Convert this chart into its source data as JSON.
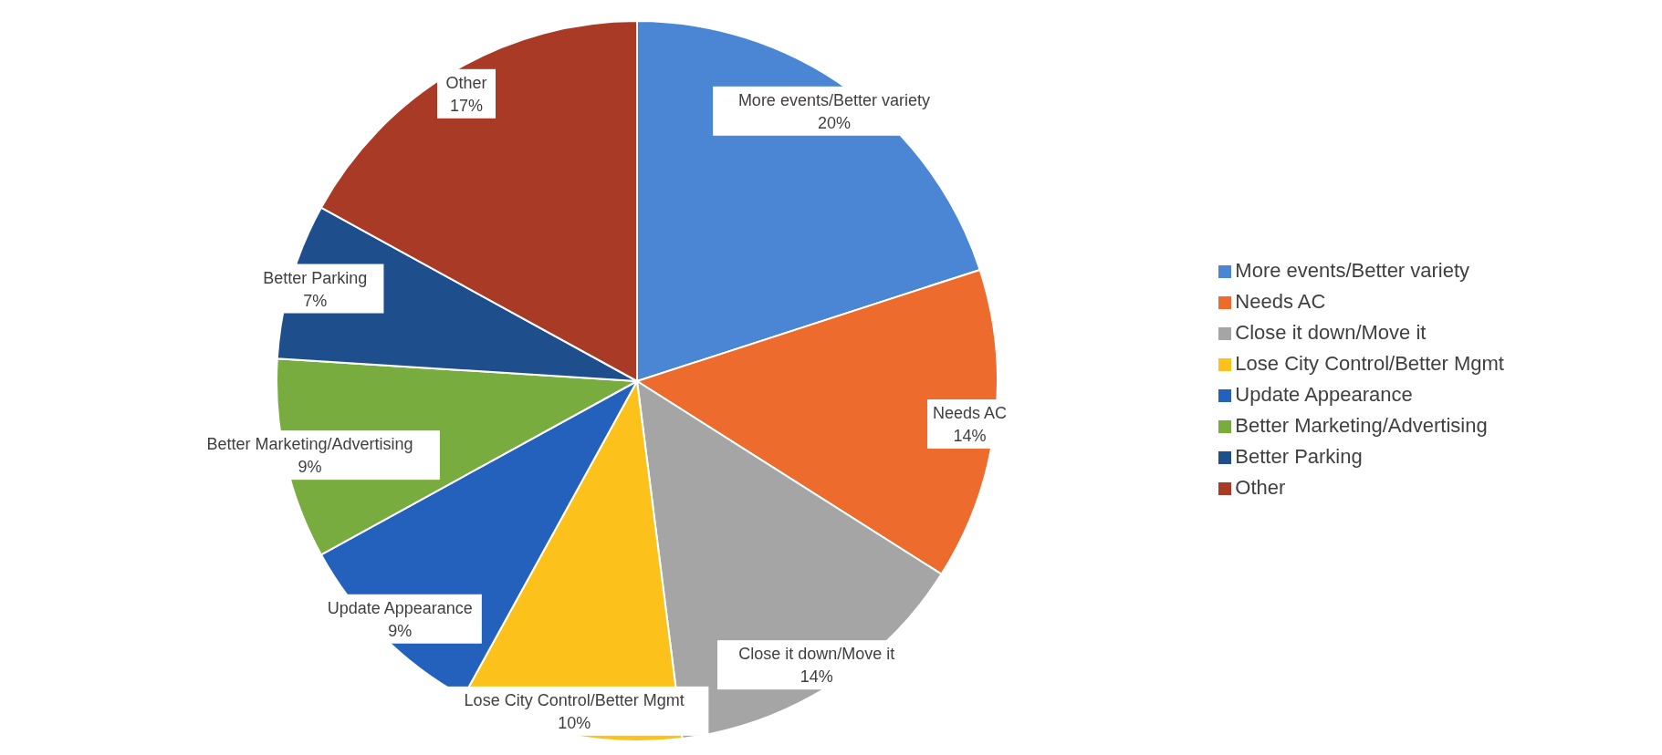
{
  "chart_data": {
    "type": "pie",
    "categories": [
      "More events/Better variety",
      "Needs AC",
      "Close it down/Move it",
      "Lose City Control/Better Mgmt",
      "Update Appearance",
      "Better Marketing/Advertising",
      "Better Parking",
      "Other"
    ],
    "values": [
      20,
      14,
      14,
      10,
      9,
      9,
      7,
      17
    ],
    "value_labels": [
      "20%",
      "14%",
      "14%",
      "10%",
      "9%",
      "9%",
      "7%",
      "17%"
    ],
    "colors": [
      "#4a86d4",
      "#ed6b2d",
      "#a5a5a5",
      "#fcc21b",
      "#2461bd",
      "#79ac3f",
      "#1f4e8c",
      "#a93a26"
    ],
    "legend": "right"
  }
}
